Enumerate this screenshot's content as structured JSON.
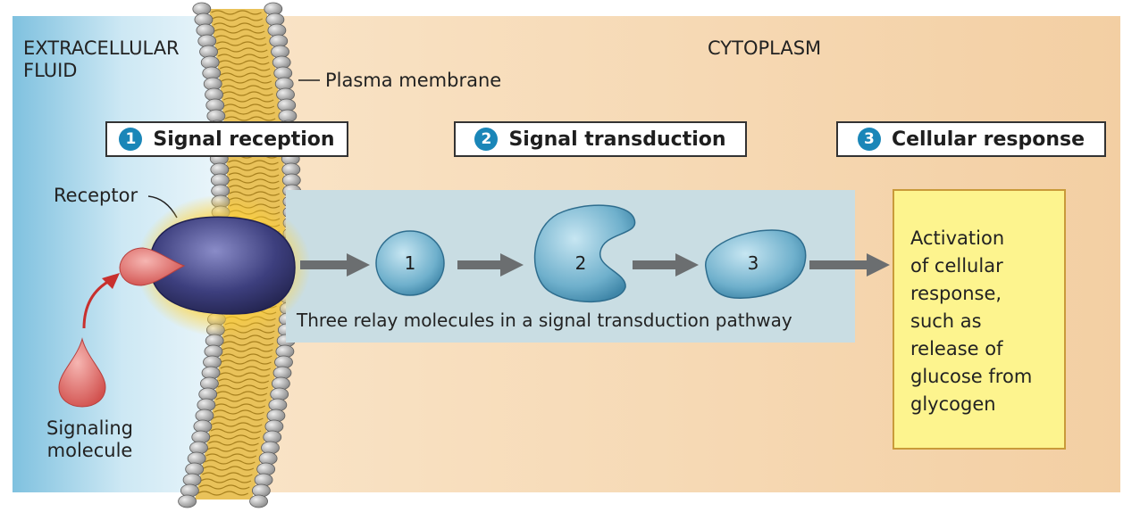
{
  "regions": {
    "extracellular_label": "EXTRACELLULAR\nFLUID",
    "cytoplasm_label": "CYTOPLASM"
  },
  "labels": {
    "plasma_membrane": "Plasma membrane",
    "receptor": "Receptor",
    "signaling_molecule": "Signaling\nmolecule",
    "pathway_caption": "Three relay molecules in a signal transduction pathway"
  },
  "steps": [
    {
      "number": "1",
      "label": "Signal reception"
    },
    {
      "number": "2",
      "label": "Signal transduction"
    },
    {
      "number": "3",
      "label": "Cellular response"
    }
  ],
  "relay_molecules": [
    "1",
    "2",
    "3"
  ],
  "response_text": "Activation\nof cellular\nresponse,\nsuch as\nrelease of\nglucose from\nglycogen",
  "colors": {
    "extracellular": "#b9dcec",
    "cytoplasm": "#f6dcb8",
    "receptor": "#3d3f7e",
    "relay": "#79b6d0",
    "signal": "#e07a78",
    "response_box": "#fdf48e",
    "step_badge": "#1a86b8",
    "arrow": "#6b6e70"
  }
}
